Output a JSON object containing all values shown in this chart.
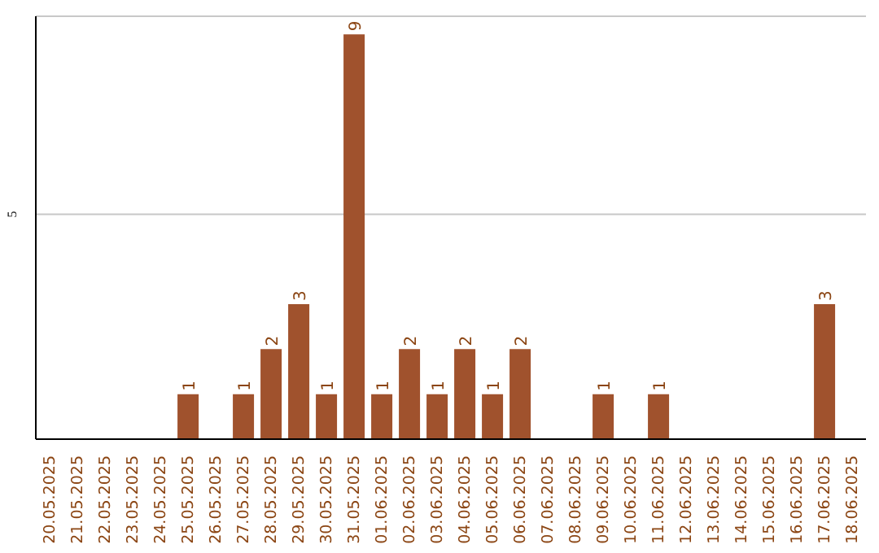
{
  "chart_data": {
    "type": "bar",
    "categories": [
      "20.05.2025",
      "21.05.2025",
      "22.05.2025",
      "23.05.2025",
      "24.05.2025",
      "25.05.2025",
      "26.05.2025",
      "27.05.2025",
      "28.05.2025",
      "29.05.2025",
      "30.05.2025",
      "31.05.2025",
      "01.06.2025",
      "02.06.2025",
      "03.06.2025",
      "04.06.2025",
      "05.06.2025",
      "06.06.2025",
      "07.06.2025",
      "08.06.2025",
      "09.06.2025",
      "10.06.2025",
      "11.06.2025",
      "12.06.2025",
      "13.06.2025",
      "14.06.2025",
      "15.06.2025",
      "16.06.2025",
      "17.06.2025",
      "18.06.2025"
    ],
    "values": [
      0,
      0,
      0,
      0,
      0,
      1,
      0,
      1,
      2,
      3,
      1,
      9,
      1,
      2,
      1,
      2,
      1,
      2,
      0,
      0,
      1,
      0,
      1,
      0,
      0,
      0,
      0,
      0,
      3,
      0
    ],
    "value_labels": [
      null,
      null,
      null,
      null,
      null,
      "1",
      null,
      "1",
      "2",
      "3",
      "1",
      "9",
      "1",
      "2",
      "1",
      "2",
      "1",
      "2",
      null,
      null,
      "1",
      null,
      "1",
      null,
      null,
      null,
      null,
      null,
      "3",
      null
    ],
    "color": "#a0522d",
    "ylim": [
      0,
      9.4
    ],
    "yticks": [
      5
    ],
    "grid": "y"
  }
}
